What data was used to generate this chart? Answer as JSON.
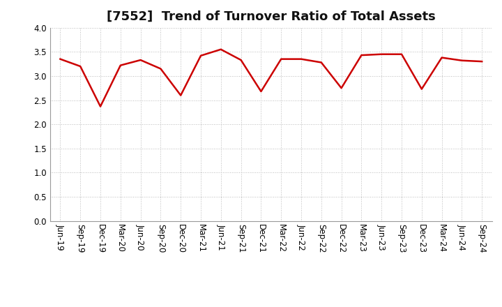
{
  "title": "[7552]  Trend of Turnover Ratio of Total Assets",
  "labels": [
    "Jun-19",
    "Sep-19",
    "Dec-19",
    "Mar-20",
    "Jun-20",
    "Sep-20",
    "Dec-20",
    "Mar-21",
    "Jun-21",
    "Sep-21",
    "Dec-21",
    "Mar-22",
    "Jun-22",
    "Sep-22",
    "Dec-22",
    "Mar-23",
    "Jun-23",
    "Sep-23",
    "Dec-23",
    "Mar-24",
    "Jun-24",
    "Sep-24"
  ],
  "values": [
    3.35,
    3.2,
    2.37,
    3.22,
    3.33,
    3.15,
    2.6,
    3.42,
    3.55,
    3.33,
    2.68,
    3.35,
    3.35,
    3.28,
    2.75,
    3.43,
    3.45,
    3.45,
    2.73,
    3.38,
    3.32,
    3.3
  ],
  "line_color": "#cc0000",
  "line_width": 1.8,
  "ylim": [
    0.0,
    4.0
  ],
  "yticks": [
    0.0,
    0.5,
    1.0,
    1.5,
    2.0,
    2.5,
    3.0,
    3.5,
    4.0
  ],
  "background_color": "#ffffff",
  "grid_color": "#bbbbbb",
  "title_fontsize": 13,
  "tick_fontsize": 8.5,
  "title_color": "#111111",
  "title_fontweight": "bold"
}
